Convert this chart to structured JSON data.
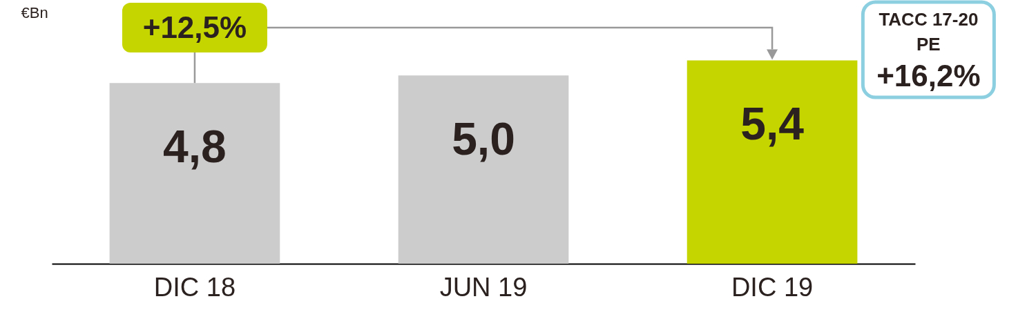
{
  "chart_data": {
    "type": "bar",
    "ylabel": "€Bn",
    "categories": [
      "DIC 18",
      "JUN 19",
      "DIC 19"
    ],
    "values": [
      4.8,
      5.0,
      5.4
    ],
    "value_labels": [
      "4,8",
      "5,0",
      "5,4"
    ],
    "colors": [
      "#cccccc",
      "#cccccc",
      "#c5d500"
    ],
    "annotations": [
      "+12,5%",
      "TACC 17-20 PE +16,2%"
    ],
    "grid": false
  }
}
